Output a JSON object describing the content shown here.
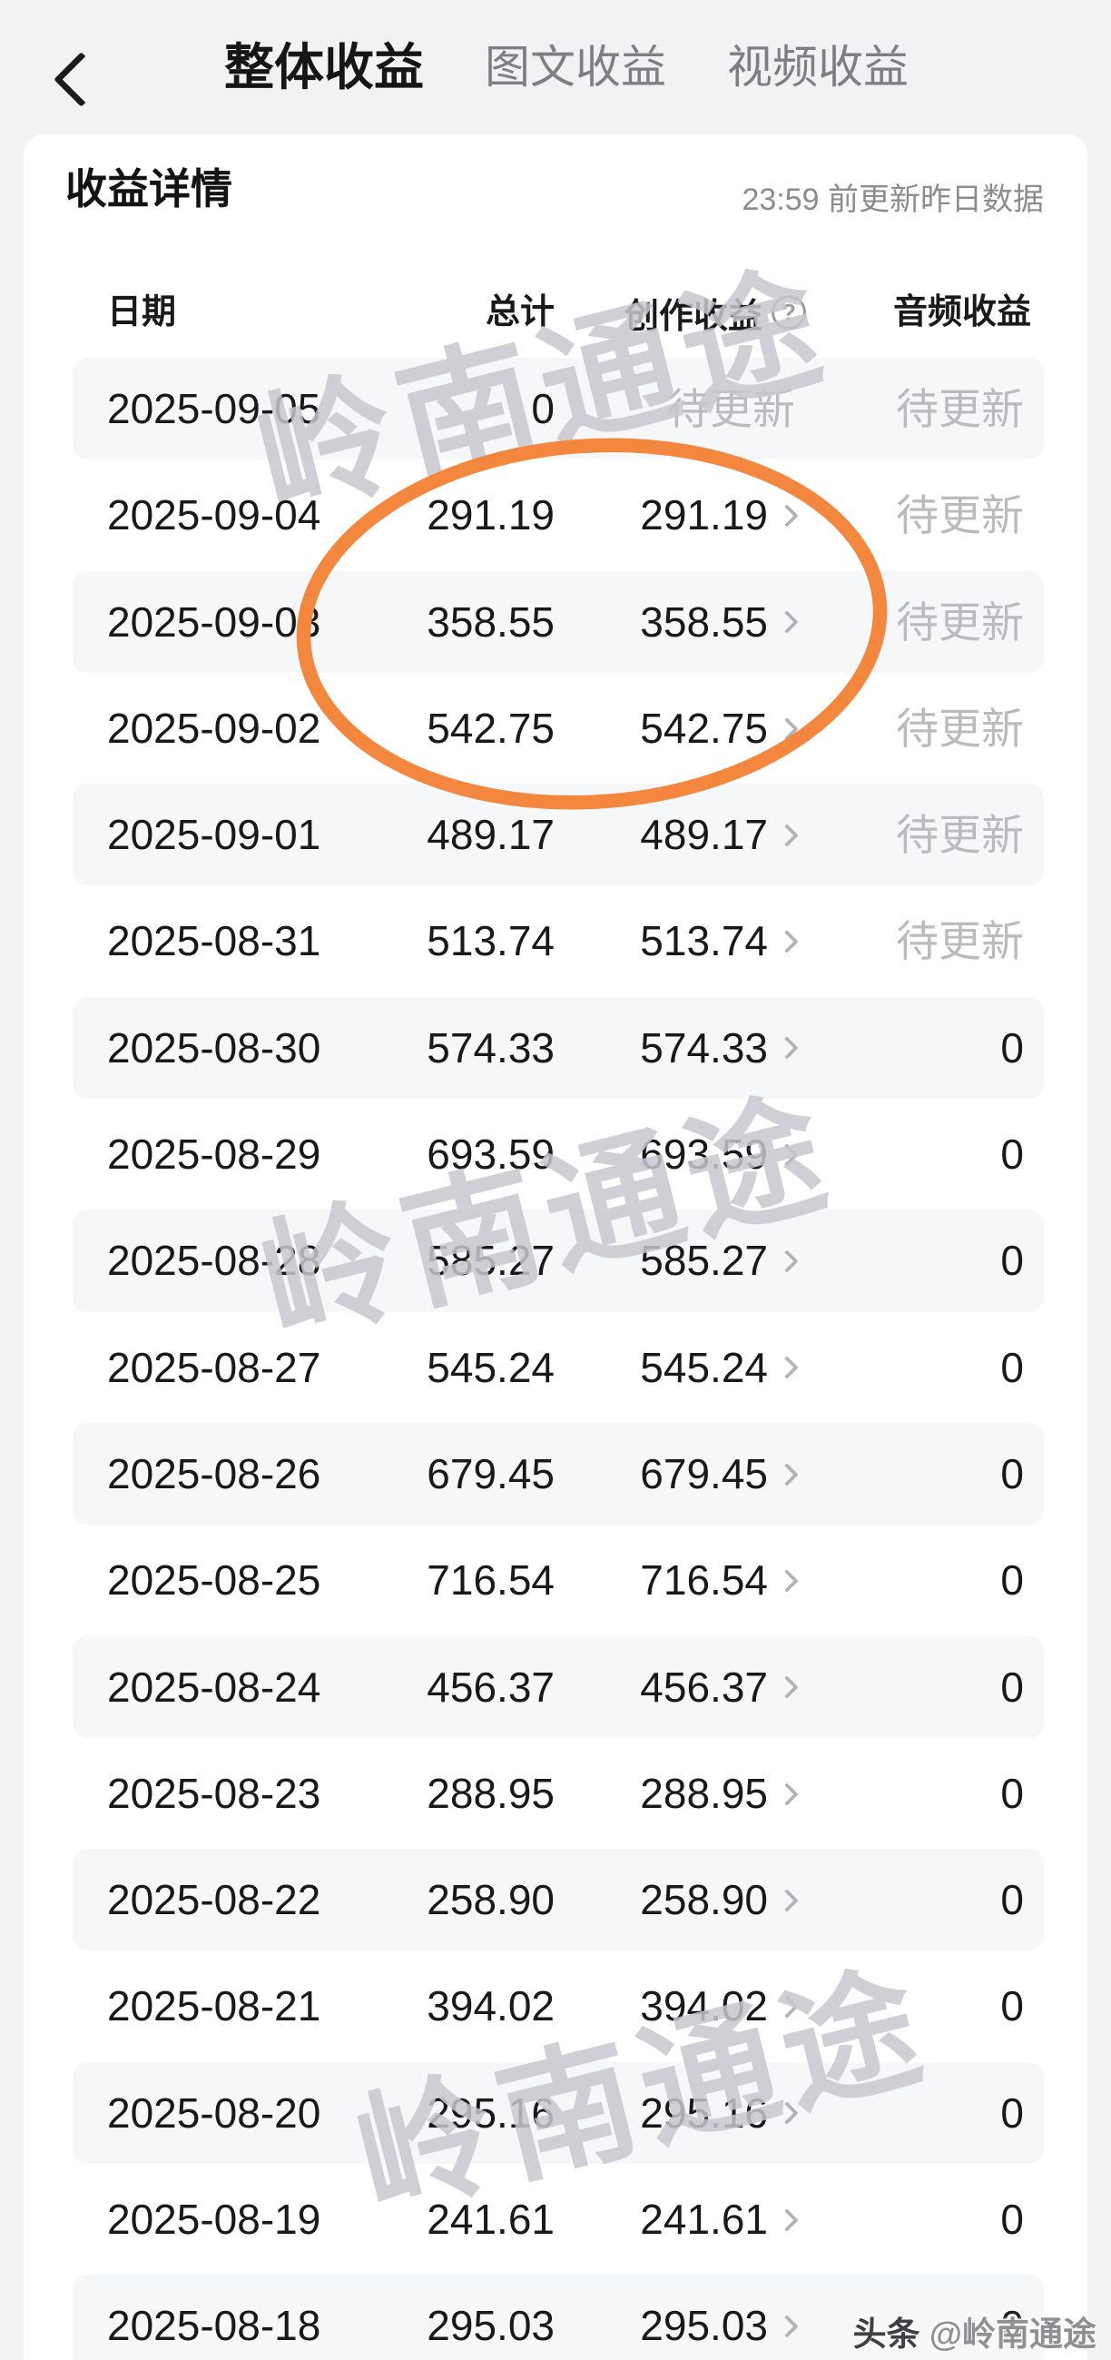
{
  "nav": {
    "back_icon": "chevron-left",
    "tabs": [
      {
        "label": "整体收益",
        "active": true
      },
      {
        "label": "图文收益",
        "active": false
      },
      {
        "label": "视频收益",
        "active": false
      }
    ]
  },
  "panel": {
    "title": "收益详情",
    "update_note": "23:59 前更新昨日数据",
    "table": {
      "columns": {
        "date": "日期",
        "total": "总计",
        "creation": "创作收益",
        "audio": "音频收益"
      },
      "help_icon": "?",
      "pending_label": "待更新",
      "rows": [
        {
          "date": "2025-09-05",
          "total": "0",
          "creation": "待更新",
          "creation_pending": true,
          "audio": "待更新",
          "audio_pending": true
        },
        {
          "date": "2025-09-04",
          "total": "291.19",
          "creation": "291.19",
          "creation_pending": false,
          "audio": "待更新",
          "audio_pending": true
        },
        {
          "date": "2025-09-03",
          "total": "358.55",
          "creation": "358.55",
          "creation_pending": false,
          "audio": "待更新",
          "audio_pending": true
        },
        {
          "date": "2025-09-02",
          "total": "542.75",
          "creation": "542.75",
          "creation_pending": false,
          "audio": "待更新",
          "audio_pending": true
        },
        {
          "date": "2025-09-01",
          "total": "489.17",
          "creation": "489.17",
          "creation_pending": false,
          "audio": "待更新",
          "audio_pending": true
        },
        {
          "date": "2025-08-31",
          "total": "513.74",
          "creation": "513.74",
          "creation_pending": false,
          "audio": "待更新",
          "audio_pending": true
        },
        {
          "date": "2025-08-30",
          "total": "574.33",
          "creation": "574.33",
          "creation_pending": false,
          "audio": "0",
          "audio_pending": false
        },
        {
          "date": "2025-08-29",
          "total": "693.59",
          "creation": "693.59",
          "creation_pending": false,
          "audio": "0",
          "audio_pending": false
        },
        {
          "date": "2025-08-28",
          "total": "585.27",
          "creation": "585.27",
          "creation_pending": false,
          "audio": "0",
          "audio_pending": false
        },
        {
          "date": "2025-08-27",
          "total": "545.24",
          "creation": "545.24",
          "creation_pending": false,
          "audio": "0",
          "audio_pending": false
        },
        {
          "date": "2025-08-26",
          "total": "679.45",
          "creation": "679.45",
          "creation_pending": false,
          "audio": "0",
          "audio_pending": false
        },
        {
          "date": "2025-08-25",
          "total": "716.54",
          "creation": "716.54",
          "creation_pending": false,
          "audio": "0",
          "audio_pending": false
        },
        {
          "date": "2025-08-24",
          "total": "456.37",
          "creation": "456.37",
          "creation_pending": false,
          "audio": "0",
          "audio_pending": false
        },
        {
          "date": "2025-08-23",
          "total": "288.95",
          "creation": "288.95",
          "creation_pending": false,
          "audio": "0",
          "audio_pending": false
        },
        {
          "date": "2025-08-22",
          "total": "258.90",
          "creation": "258.90",
          "creation_pending": false,
          "audio": "0",
          "audio_pending": false
        },
        {
          "date": "2025-08-21",
          "total": "394.02",
          "creation": "394.02",
          "creation_pending": false,
          "audio": "0",
          "audio_pending": false
        },
        {
          "date": "2025-08-20",
          "total": "295.16",
          "creation": "295.16",
          "creation_pending": false,
          "audio": "0",
          "audio_pending": false
        },
        {
          "date": "2025-08-19",
          "total": "241.61",
          "creation": "241.61",
          "creation_pending": false,
          "audio": "0",
          "audio_pending": false
        },
        {
          "date": "2025-08-18",
          "total": "295.03",
          "creation": "295.03",
          "creation_pending": false,
          "audio": "0",
          "audio_pending": false
        }
      ]
    }
  },
  "watermark": {
    "text": "岭南通途",
    "brand_prefix": "头条",
    "brand_handle": "@岭南通途"
  },
  "annotation": {
    "shape": "hand-drawn-ellipse",
    "color": "#f2873d",
    "circled_rows": [
      "2025-09-04",
      "2025-09-03",
      "2025-09-02"
    ]
  },
  "colors": {
    "page_bg": "#f1f2f4",
    "card_bg": "#ffffff",
    "row_alt_bg": "#f6f7f9",
    "text_primary": "#19191b",
    "text_secondary": "#7f7f83",
    "pending_text": "#b9bbbf",
    "accent_orange": "#f2873d"
  }
}
